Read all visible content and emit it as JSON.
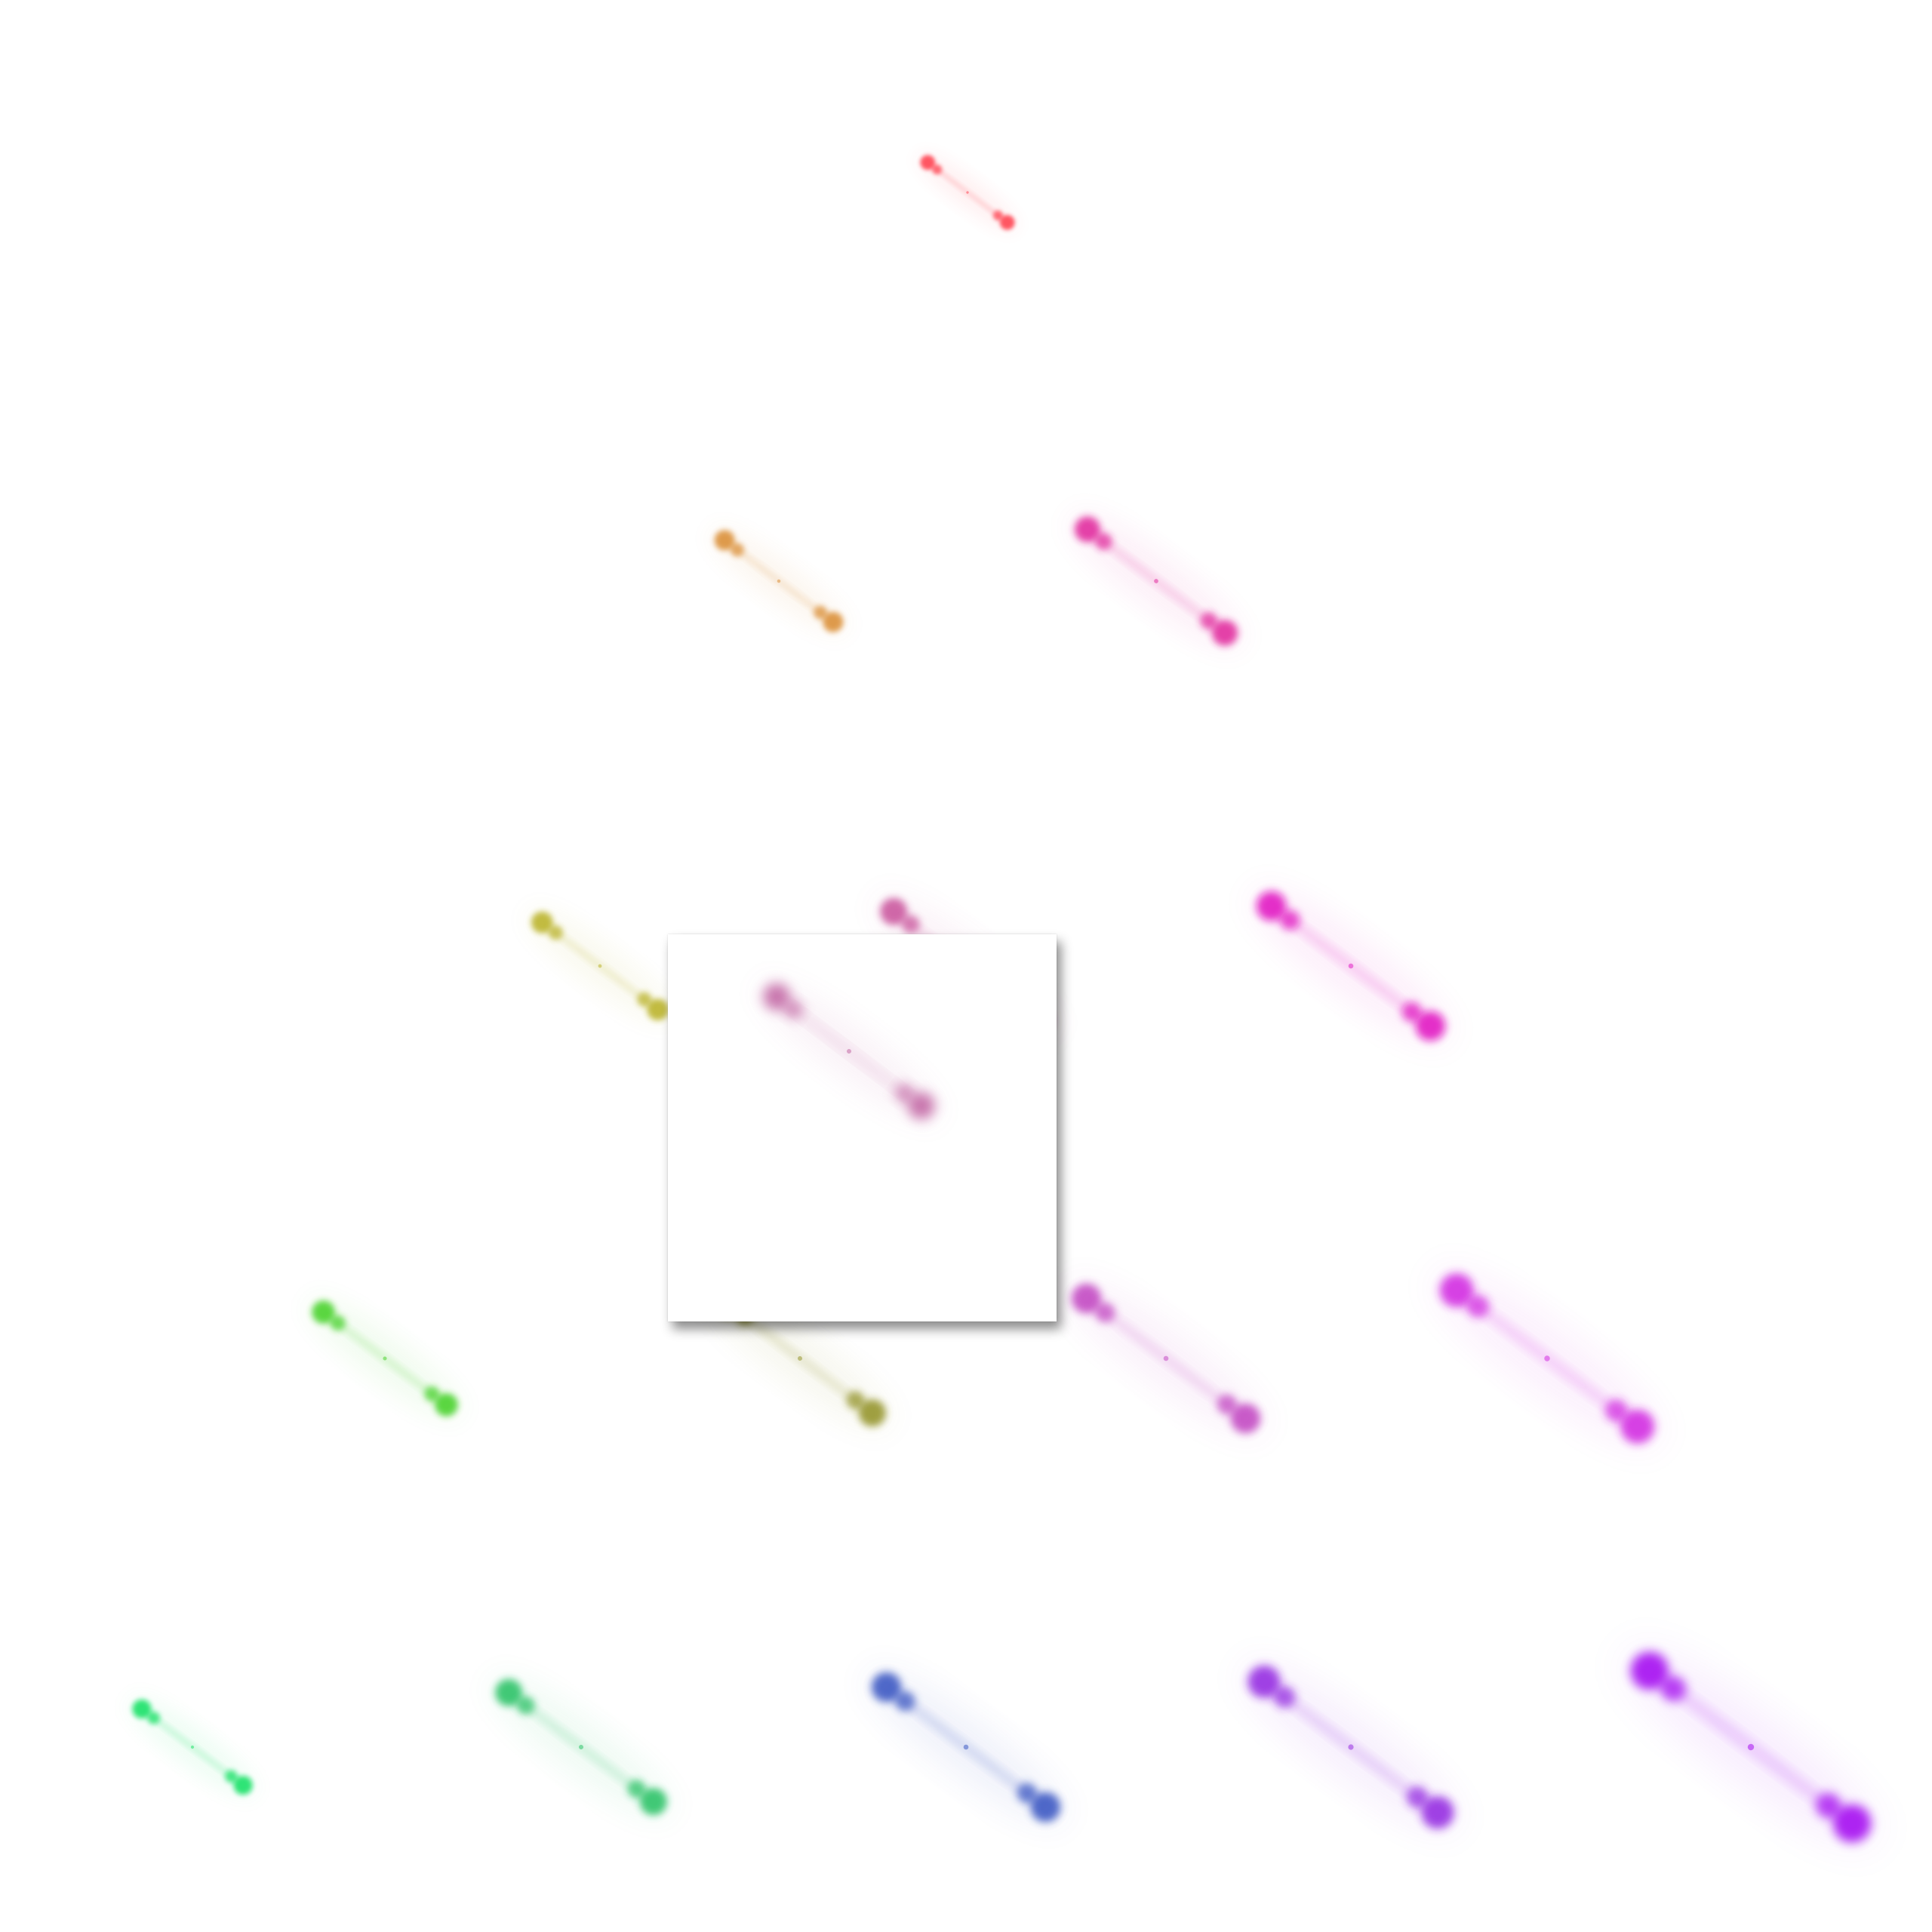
{
  "background": "#ffffff",
  "grid": {
    "rows": 5,
    "description_colors": [
      [
        "#ff3b4a"
      ],
      [
        "#d98a2e",
        "#e0209a"
      ],
      [
        "#b8b020",
        "#c8509a",
        "#e010c0"
      ],
      [
        "#40d020",
        "#909020",
        "#c040c0",
        "#d020e0"
      ],
      [
        "#10e060",
        "#20c060",
        "#3050c0",
        "#9020e0",
        "#a000f0"
      ]
    ]
  },
  "popup": {
    "color": "#c060a0"
  }
}
